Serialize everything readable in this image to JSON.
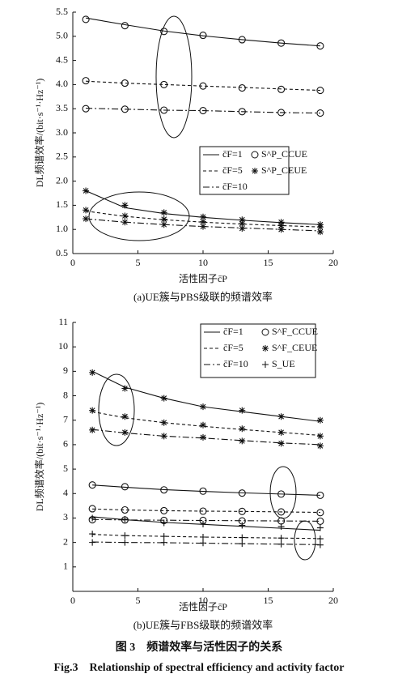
{
  "chart_data": [
    {
      "type": "line",
      "x_label": "活性因子c̄P",
      "y_label": "DL频谱效率/(bit·s⁻¹·Hz⁻¹)",
      "caption": "(a)UE簇与PBS级联的频谱效率",
      "xlim": [
        0,
        20
      ],
      "xticks": [
        0,
        5,
        10,
        15,
        20
      ],
      "ylim": [
        0.5,
        5.5
      ],
      "yticks": [
        0.5,
        {
          "value": 1,
          "label": "1.0"
        },
        1.5,
        {
          "value": 2,
          "label": "2.0"
        },
        2.5,
        {
          "value": 3,
          "label": "3.0"
        },
        3.5,
        {
          "value": 4,
          "label": "4.0"
        },
        4.5,
        {
          "value": 5,
          "label": "5.0"
        },
        5.5
      ],
      "x": [
        1,
        4,
        7,
        10,
        13,
        16,
        19
      ],
      "line_styles": [
        {
          "name": "c̄F=1",
          "dash": "solid"
        },
        {
          "name": "c̄F=5",
          "dash": "dashed"
        },
        {
          "name": "c̄F=10",
          "dash": "dashdot"
        }
      ],
      "marker_styles": [
        {
          "name": "S^P_CCUE",
          "symbol": "circle"
        },
        {
          "name": "S^P_CEUE",
          "symbol": "star"
        }
      ],
      "series": [
        {
          "line_style": 0,
          "marker_style": 0,
          "line_values": [
            5.38,
            5.24,
            5.11,
            5.01,
            4.93,
            4.86,
            4.8
          ],
          "marker_values": [
            5.35,
            5.22,
            5.1,
            5.02,
            4.93,
            4.86,
            4.8
          ]
        },
        {
          "line_style": 1,
          "marker_style": 0,
          "line_values": [
            4.07,
            4.03,
            4.0,
            3.97,
            3.94,
            3.91,
            3.88
          ],
          "marker_values": [
            4.08,
            4.03,
            4.0,
            3.97,
            3.93,
            3.9,
            3.88
          ]
        },
        {
          "line_style": 2,
          "marker_style": 0,
          "line_values": [
            3.51,
            3.49,
            3.47,
            3.46,
            3.44,
            3.42,
            3.41
          ],
          "marker_values": [
            3.5,
            3.49,
            3.47,
            3.46,
            3.44,
            3.42,
            3.41
          ]
        },
        {
          "line_style": 0,
          "marker_style": 1,
          "line_values": [
            1.8,
            1.45,
            1.33,
            1.25,
            1.19,
            1.14,
            1.1
          ],
          "marker_values": [
            1.8,
            1.5,
            1.35,
            1.26,
            1.2,
            1.15,
            1.1
          ]
        },
        {
          "line_style": 1,
          "marker_style": 1,
          "line_values": [
            1.38,
            1.27,
            1.2,
            1.15,
            1.11,
            1.08,
            1.05
          ],
          "marker_values": [
            1.4,
            1.28,
            1.21,
            1.16,
            1.12,
            1.08,
            1.05
          ]
        },
        {
          "line_style": 2,
          "marker_style": 1,
          "line_values": [
            1.22,
            1.15,
            1.1,
            1.06,
            1.03,
            1.0,
            0.97
          ],
          "marker_values": [
            1.22,
            1.15,
            1.1,
            1.06,
            1.02,
            1.0,
            0.95
          ]
        }
      ]
    },
    {
      "type": "line",
      "x_label": "活性因子c̄P",
      "y_label": "DL频谱效率/(bit·s⁻¹·Hz⁻¹)",
      "caption": "(b)UE簇与FBS级联的频谱效率",
      "xlim": [
        0,
        20
      ],
      "xticks": [
        0,
        5,
        10,
        15,
        20
      ],
      "ylim": [
        0,
        11
      ],
      "yticks": [
        1,
        2,
        3,
        4,
        5,
        6,
        7,
        8,
        9,
        10,
        11
      ],
      "x": [
        1.5,
        4,
        7,
        10,
        13,
        16,
        19
      ],
      "line_styles": [
        {
          "name": "c̄F=1",
          "dash": "solid"
        },
        {
          "name": "c̄F=5",
          "dash": "dashed"
        },
        {
          "name": "c̄F=10",
          "dash": "dashdot"
        }
      ],
      "marker_styles": [
        {
          "name": "S^F_CCUE",
          "symbol": "circle"
        },
        {
          "name": "S^F_CEUE",
          "symbol": "star"
        },
        {
          "name": "S_UE",
          "symbol": "plus"
        }
      ],
      "series": [
        {
          "line_style": 0,
          "marker_style": 1,
          "line_values": [
            9.0,
            8.35,
            7.9,
            7.55,
            7.35,
            7.15,
            6.95
          ],
          "marker_values": [
            8.95,
            8.3,
            7.9,
            7.55,
            7.4,
            7.15,
            7.0
          ]
        },
        {
          "line_style": 1,
          "marker_style": 1,
          "line_values": [
            7.35,
            7.1,
            6.9,
            6.75,
            6.62,
            6.5,
            6.38
          ],
          "marker_values": [
            7.4,
            7.15,
            6.9,
            6.8,
            6.65,
            6.5,
            6.35
          ]
        },
        {
          "line_style": 2,
          "marker_style": 1,
          "line_values": [
            6.62,
            6.48,
            6.35,
            6.27,
            6.17,
            6.07,
            6.0
          ],
          "marker_values": [
            6.6,
            6.5,
            6.35,
            6.3,
            6.15,
            6.05,
            5.95
          ]
        },
        {
          "line_style": 0,
          "marker_style": 0,
          "line_values": [
            4.35,
            4.26,
            4.16,
            4.09,
            4.03,
            3.98,
            3.93
          ],
          "marker_values": [
            4.35,
            4.28,
            4.15,
            4.1,
            4.02,
            3.98,
            3.93
          ]
        },
        {
          "line_style": 1,
          "marker_style": 0,
          "line_values": [
            3.37,
            3.33,
            3.3,
            3.28,
            3.27,
            3.25,
            3.23
          ],
          "marker_values": [
            3.38,
            3.33,
            3.3,
            3.28,
            3.27,
            3.25,
            3.22
          ]
        },
        {
          "line_style": 2,
          "marker_style": 0,
          "line_values": [
            2.94,
            2.92,
            2.91,
            2.9,
            2.89,
            2.88,
            2.87
          ],
          "marker_values": [
            2.93,
            2.92,
            2.9,
            2.9,
            2.88,
            2.88,
            2.87
          ]
        },
        {
          "line_style": 0,
          "marker_style": 2,
          "line_values": [
            3.05,
            2.93,
            2.82,
            2.74,
            2.66,
            2.58,
            2.5
          ],
          "marker_values": [
            3.0,
            2.95,
            2.8,
            2.75,
            2.7,
            2.65,
            2.6
          ]
        },
        {
          "line_style": 1,
          "marker_style": 2,
          "line_values": [
            2.33,
            2.28,
            2.25,
            2.22,
            2.2,
            2.18,
            2.16
          ],
          "marker_values": [
            2.35,
            2.28,
            2.25,
            2.22,
            2.2,
            2.18,
            2.15
          ]
        },
        {
          "line_style": 2,
          "marker_style": 2,
          "line_values": [
            2.02,
            2.0,
            1.99,
            1.97,
            1.95,
            1.93,
            1.91
          ],
          "marker_values": [
            2.0,
            2.0,
            2.0,
            1.98,
            1.95,
            1.93,
            1.9
          ]
        }
      ]
    }
  ],
  "figure_caption_cn": "图 3　频谱效率与活性因子的关系",
  "figure_caption_en": "Fig.3　Relationship of spectral efficiency and activity factor"
}
